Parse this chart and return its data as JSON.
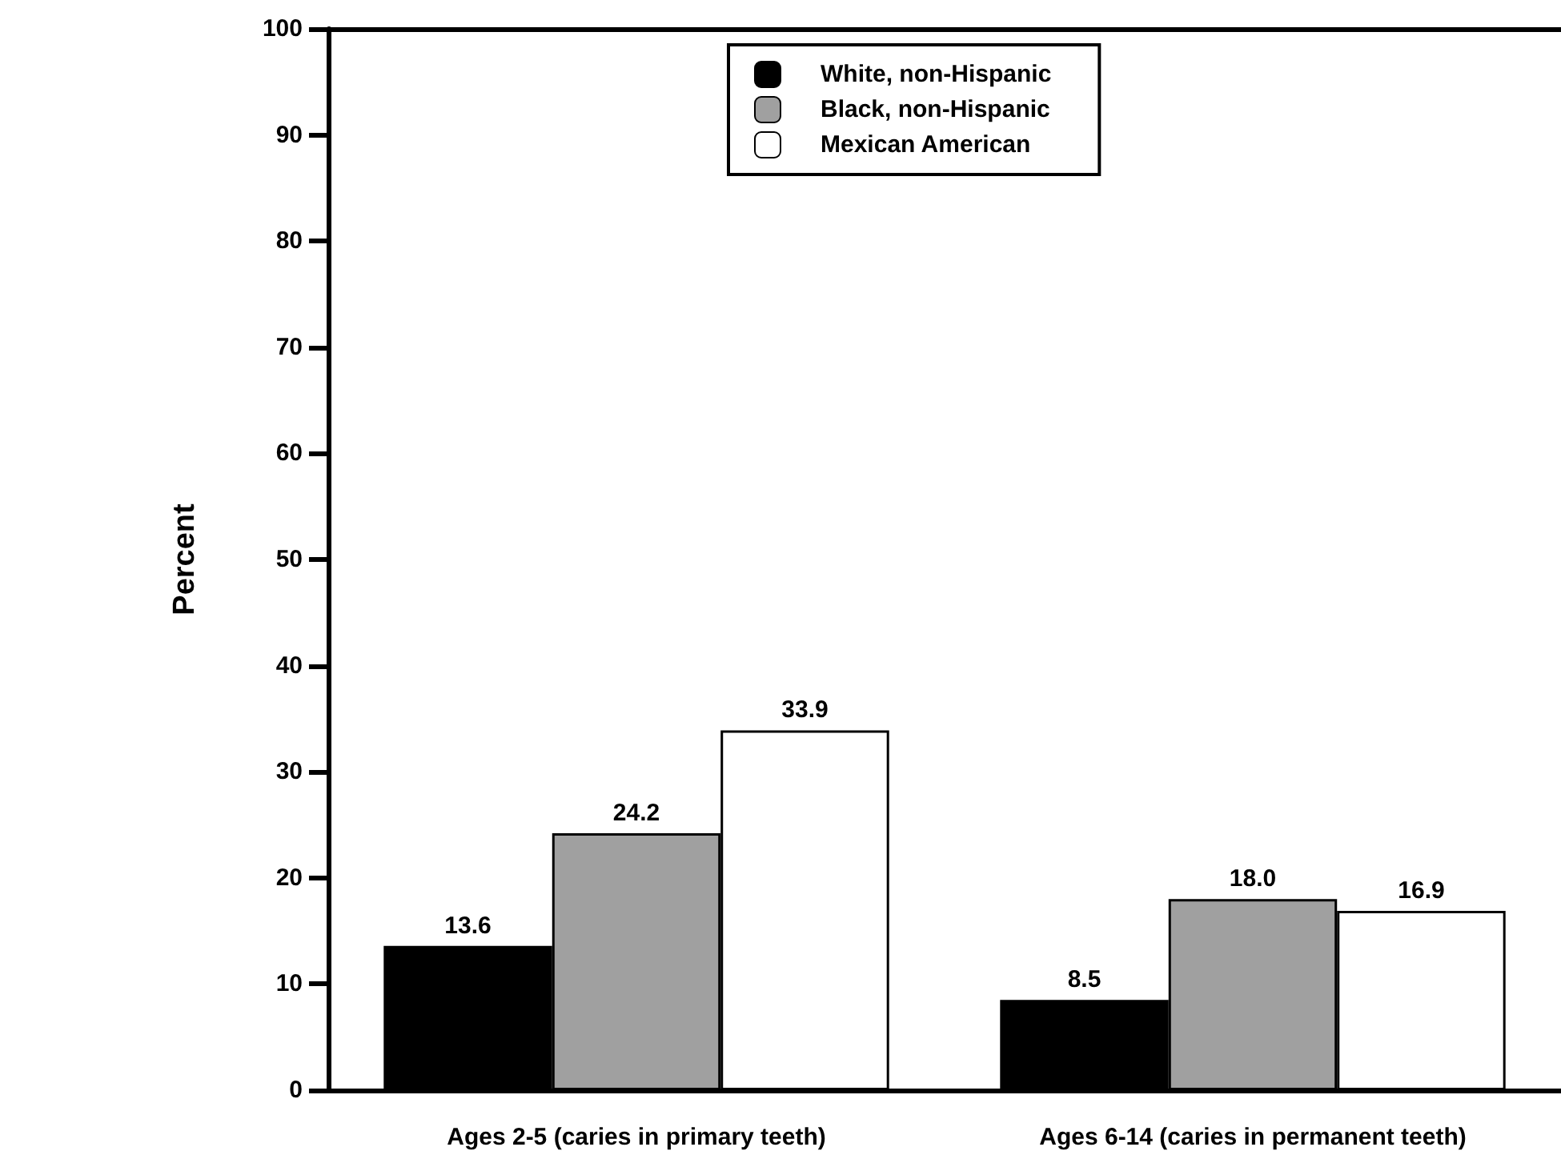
{
  "chart_data": {
    "type": "bar",
    "ylabel": "Percent",
    "categories": [
      "Ages 2-5 (caries in primary teeth)",
      "Ages 6-14 (caries in permanent teeth)"
    ],
    "series": [
      {
        "name": "White, non-Hispanic",
        "color": "#000000",
        "values": [
          13.6,
          8.5
        ]
      },
      {
        "name": "Black, non-Hispanic",
        "color": "#a0a0a0",
        "values": [
          24.2,
          18.0
        ]
      },
      {
        "name": "Mexican American",
        "color": "#ffffff",
        "values": [
          33.9,
          16.9
        ]
      }
    ],
    "value_labels": [
      [
        "13.6",
        "8.5"
      ],
      [
        "24.2",
        "18.0"
      ],
      [
        "33.9",
        "16.9"
      ]
    ],
    "ylim": [
      0,
      100
    ],
    "yticks": [
      0,
      10,
      20,
      30,
      40,
      50,
      60,
      70,
      80,
      90,
      100
    ],
    "grid": false,
    "legend": "top"
  }
}
